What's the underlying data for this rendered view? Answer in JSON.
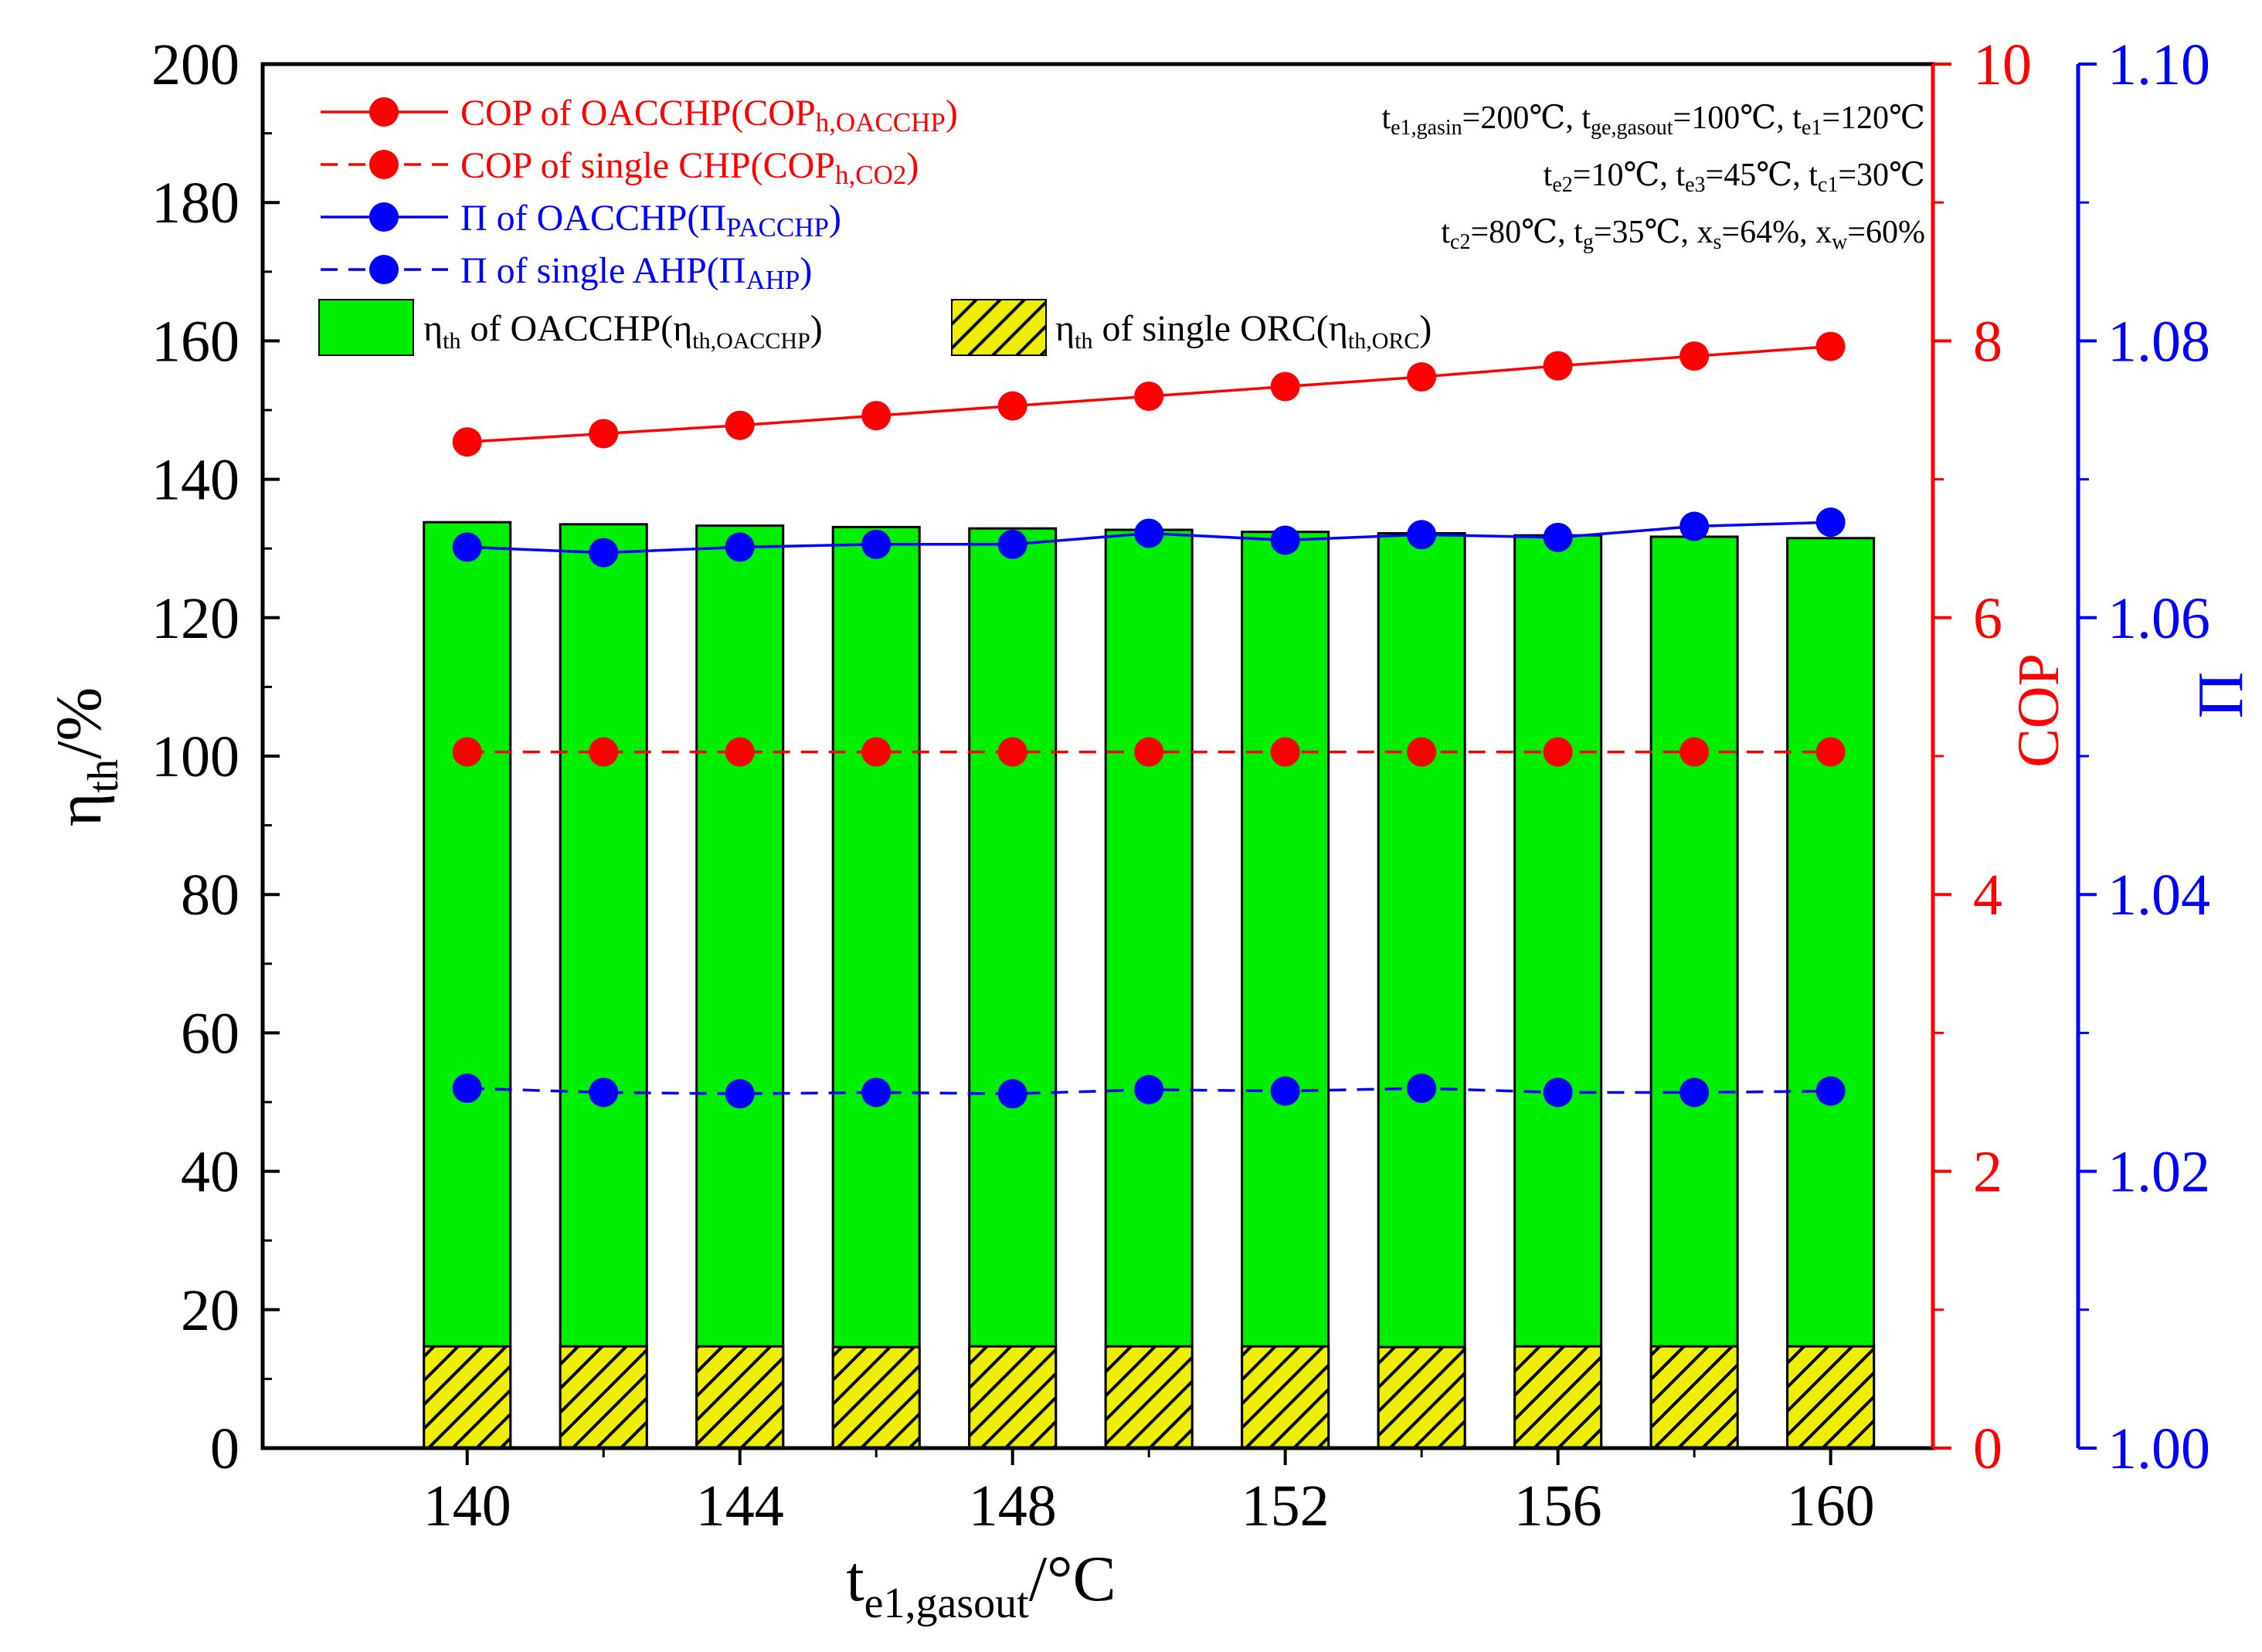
{
  "chart_data": {
    "type": "bar",
    "x_label": {
      "main": "t",
      "sub": "e1,gasout",
      "unit": "/°C"
    },
    "x": [
      140,
      142,
      144,
      146,
      148,
      150,
      152,
      154,
      156,
      158,
      160
    ],
    "x_tick_labels": [
      "140",
      "144",
      "148",
      "152",
      "156",
      "160"
    ],
    "x_range": [
      137,
      161.5
    ],
    "axes": {
      "left": {
        "label_main": "η",
        "label_sub": "th",
        "label_unit": "/%",
        "range": [
          0,
          200
        ],
        "ticks": [
          "0",
          "20",
          "40",
          "60",
          "80",
          "100",
          "120",
          "140",
          "160",
          "180",
          "200"
        ],
        "color": "#000000"
      },
      "right1": {
        "label": "COP",
        "range": [
          0,
          10
        ],
        "ticks": [
          "0",
          "2",
          "4",
          "6",
          "8",
          "10"
        ],
        "color": "#ff0000"
      },
      "right2": {
        "label": "Π",
        "range": [
          1.0,
          1.1
        ],
        "ticks": [
          "1.00",
          "1.02",
          "1.04",
          "1.06",
          "1.08",
          "1.10"
        ],
        "color": "#0000ff"
      }
    },
    "bars": [
      {
        "name": "ηth of OACCHP(ηth,OACCHP)",
        "color": "#00ee00",
        "values": [
          133.8,
          133.5,
          133.3,
          133.1,
          132.9,
          132.7,
          132.4,
          132.2,
          131.9,
          131.7,
          131.5
        ]
      },
      {
        "name": "ηth of single ORC(ηth,ORC)",
        "color": "#eeee00",
        "pattern": "hatch",
        "values": [
          14.7,
          14.7,
          14.7,
          14.6,
          14.7,
          14.7,
          14.7,
          14.6,
          14.7,
          14.7,
          14.7
        ]
      }
    ],
    "series": [
      {
        "name": "COP of OACCHP(COPh,OACCHP)",
        "axis": "right1",
        "color": "#ff0000",
        "dash": false,
        "values": [
          7.27,
          7.33,
          7.39,
          7.46,
          7.53,
          7.6,
          7.67,
          7.74,
          7.82,
          7.89,
          7.96
        ]
      },
      {
        "name": "COP of single CHP(COPh,CO2)",
        "axis": "right1",
        "color": "#ff0000",
        "dash": true,
        "values": [
          5.03,
          5.03,
          5.03,
          5.03,
          5.03,
          5.03,
          5.03,
          5.03,
          5.03,
          5.03,
          5.03
        ]
      },
      {
        "name": "Π of OACCHP(ΠPACCHP)",
        "axis": "right2",
        "color": "#0000ff",
        "dash": false,
        "values": [
          1.0651,
          1.0647,
          1.0651,
          1.0653,
          1.0653,
          1.0661,
          1.0656,
          1.066,
          1.0658,
          1.0666,
          1.0669
        ]
      },
      {
        "name": "Π of single AHP(ΠAHP)",
        "axis": "right2",
        "color": "#0000ff",
        "dash": true,
        "values": [
          1.026,
          1.0257,
          1.0256,
          1.0257,
          1.0256,
          1.0259,
          1.0258,
          1.026,
          1.0257,
          1.0257,
          1.0258
        ]
      }
    ]
  },
  "legend": {
    "items": [
      {
        "color": "#ff0000",
        "dash": false,
        "parts": [
          [
            "COP of OACCHP(COP",
            ""
          ],
          [
            "h,OACCHP",
            "sub"
          ],
          [
            ")",
            ""
          ]
        ]
      },
      {
        "color": "#ff0000",
        "dash": true,
        "parts": [
          [
            "COP of single CHP(COP",
            ""
          ],
          [
            "h,CO2",
            "sub"
          ],
          [
            ")",
            ""
          ]
        ]
      },
      {
        "color": "#0000ff",
        "dash": false,
        "parts": [
          [
            "Π of  OACCHP(Π",
            ""
          ],
          [
            "PACCHP",
            "sub"
          ],
          [
            ")",
            ""
          ]
        ]
      },
      {
        "color": "#0000ff",
        "dash": true,
        "parts": [
          [
            "Π of single AHP(Π",
            ""
          ],
          [
            "AHP",
            "sub"
          ],
          [
            ")",
            ""
          ]
        ]
      }
    ],
    "bar_items": [
      {
        "fill": "#00ee00",
        "parts": [
          [
            "η",
            ""
          ],
          [
            "th",
            "sub"
          ],
          [
            " of  OACCHP(η",
            ""
          ],
          [
            "th,OACCHP",
            "sub"
          ],
          [
            ")",
            ""
          ]
        ]
      },
      {
        "fill": "hatch",
        "parts": [
          [
            "η",
            ""
          ],
          [
            "th",
            "sub"
          ],
          [
            " of  single ORC(η",
            ""
          ],
          [
            "th,ORC",
            "sub"
          ],
          [
            ")",
            ""
          ]
        ]
      }
    ]
  },
  "conditions": [
    [
      [
        "t",
        ""
      ],
      [
        "e1,gasin",
        "sub"
      ],
      [
        "=200℃,  t",
        ""
      ],
      [
        "ge,gasout",
        "sub"
      ],
      [
        "=100℃,  t",
        ""
      ],
      [
        "e1",
        "sub"
      ],
      [
        "=120℃",
        ""
      ]
    ],
    [
      [
        "t",
        ""
      ],
      [
        "e2",
        "sub"
      ],
      [
        "=10℃, t",
        ""
      ],
      [
        "e3",
        "sub"
      ],
      [
        "=45℃, t",
        ""
      ],
      [
        "c1",
        "sub"
      ],
      [
        "=30℃",
        ""
      ]
    ],
    [
      [
        "t",
        ""
      ],
      [
        "c2",
        "sub"
      ],
      [
        "=80℃, t",
        ""
      ],
      [
        "g",
        "sub"
      ],
      [
        "=35℃, x",
        ""
      ],
      [
        "s",
        "sub"
      ],
      [
        "=64%, x",
        ""
      ],
      [
        "w",
        "sub"
      ],
      [
        "=60%",
        ""
      ]
    ]
  ]
}
